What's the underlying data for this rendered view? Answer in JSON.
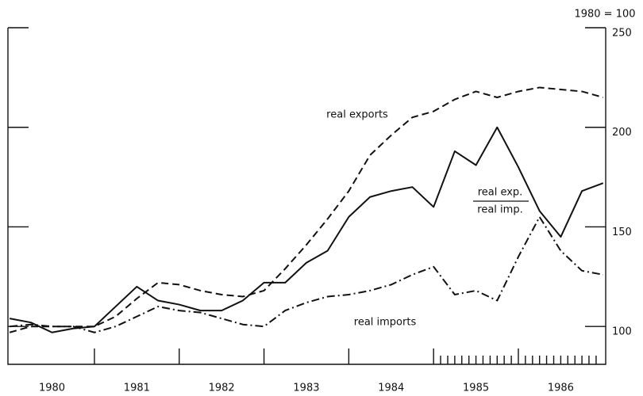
{
  "chart_data": {
    "type": "line",
    "y_axis_label": "1980 = 100",
    "x": [
      1980.0,
      1980.25,
      1980.5,
      1980.75,
      1981.0,
      1981.25,
      1981.5,
      1981.75,
      1982.0,
      1982.25,
      1982.5,
      1982.75,
      1983.0,
      1983.25,
      1983.5,
      1983.75,
      1984.0,
      1984.25,
      1984.5,
      1984.75,
      1985.0,
      1985.25,
      1985.5,
      1985.75,
      1986.0,
      1986.25,
      1986.5,
      1986.75,
      1987.0
    ],
    "series": [
      {
        "name": "real exports",
        "color": "#111111",
        "dash": "dashed",
        "values": [
          97,
          100,
          100,
          100,
          100,
          105,
          114,
          122,
          121,
          118,
          116,
          115,
          118,
          129,
          141,
          154,
          168,
          186,
          196,
          205,
          208,
          214,
          218,
          215,
          218,
          220,
          219,
          218,
          215
        ]
      },
      {
        "name": "real exp. / real imp.",
        "color": "#111111",
        "dash": "solid",
        "values": [
          104,
          102,
          97,
          99,
          100,
          110,
          120,
          113,
          111,
          108,
          108,
          113,
          122,
          122,
          132,
          138,
          155,
          165,
          168,
          170,
          160,
          188,
          181,
          200,
          180,
          158,
          145,
          168,
          172
        ]
      },
      {
        "name": "real imports",
        "color": "#111111",
        "dash": "dashdot",
        "values": [
          100,
          101,
          100,
          100,
          97,
          100,
          105,
          110,
          108,
          107,
          104,
          101,
          100,
          108,
          112,
          115,
          116,
          118,
          121,
          126,
          130,
          116,
          118,
          113,
          135,
          155,
          138,
          128,
          126
        ]
      }
    ],
    "annotations": {
      "real_exports": "real exports",
      "ratio_top": "real exp.",
      "ratio_bottom": "real imp.",
      "real_imports": "real imports"
    },
    "xlim": [
      1979.98,
      1987.03
    ],
    "xticks": [
      1981,
      1982,
      1983,
      1984,
      1985,
      1986
    ],
    "minor_xticks": [
      1985.083,
      1985.167,
      1985.25,
      1985.333,
      1985.417,
      1985.5,
      1985.583,
      1985.667,
      1985.75,
      1985.833,
      1985.917,
      1986.083,
      1986.167,
      1986.25,
      1986.333,
      1986.417,
      1986.5,
      1986.583,
      1986.667,
      1986.75,
      1986.833,
      1986.917
    ],
    "xlabels": [
      {
        "value": 1980.5,
        "label": "1980"
      },
      {
        "value": 1981.5,
        "label": "1981"
      },
      {
        "value": 1982.5,
        "label": "1982"
      },
      {
        "value": 1983.5,
        "label": "1983"
      },
      {
        "value": 1984.5,
        "label": "1984"
      },
      {
        "value": 1985.5,
        "label": "1985"
      },
      {
        "value": 1986.5,
        "label": "1986"
      }
    ],
    "ylim": [
      81,
      250
    ],
    "yticks": [
      100,
      150,
      200,
      250
    ]
  }
}
